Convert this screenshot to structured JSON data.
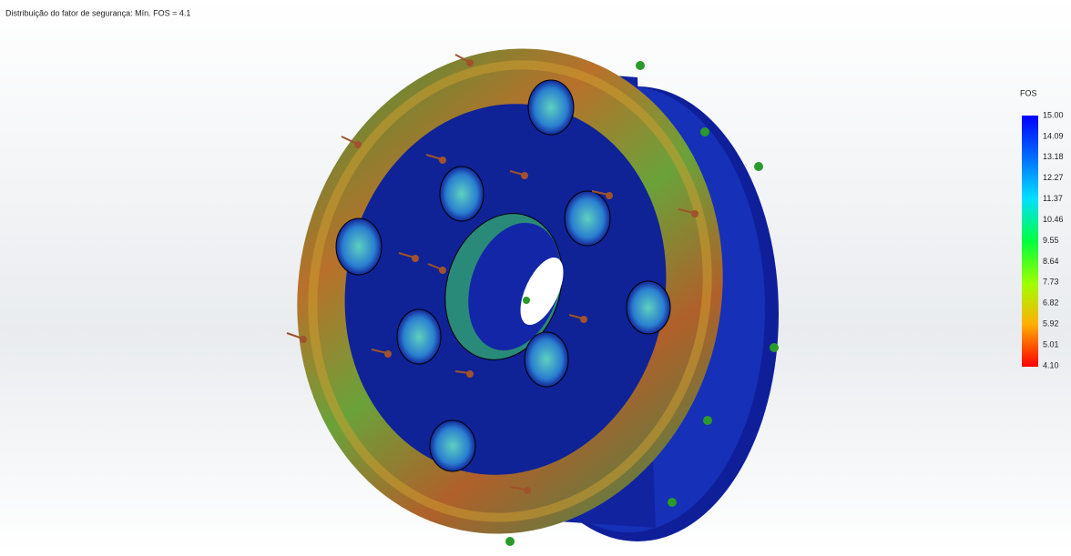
{
  "header": {
    "title": "Distribuição do fator de segurança: Mín. FOS = 4.1"
  },
  "legend": {
    "title": "FOS",
    "labels": [
      "15.00",
      "14.09",
      "13.18",
      "12.27",
      "11.37",
      "10.46",
      "9.55",
      "8.64",
      "7.73",
      "6.82",
      "5.92",
      "5.01",
      "4.10"
    ]
  }
}
